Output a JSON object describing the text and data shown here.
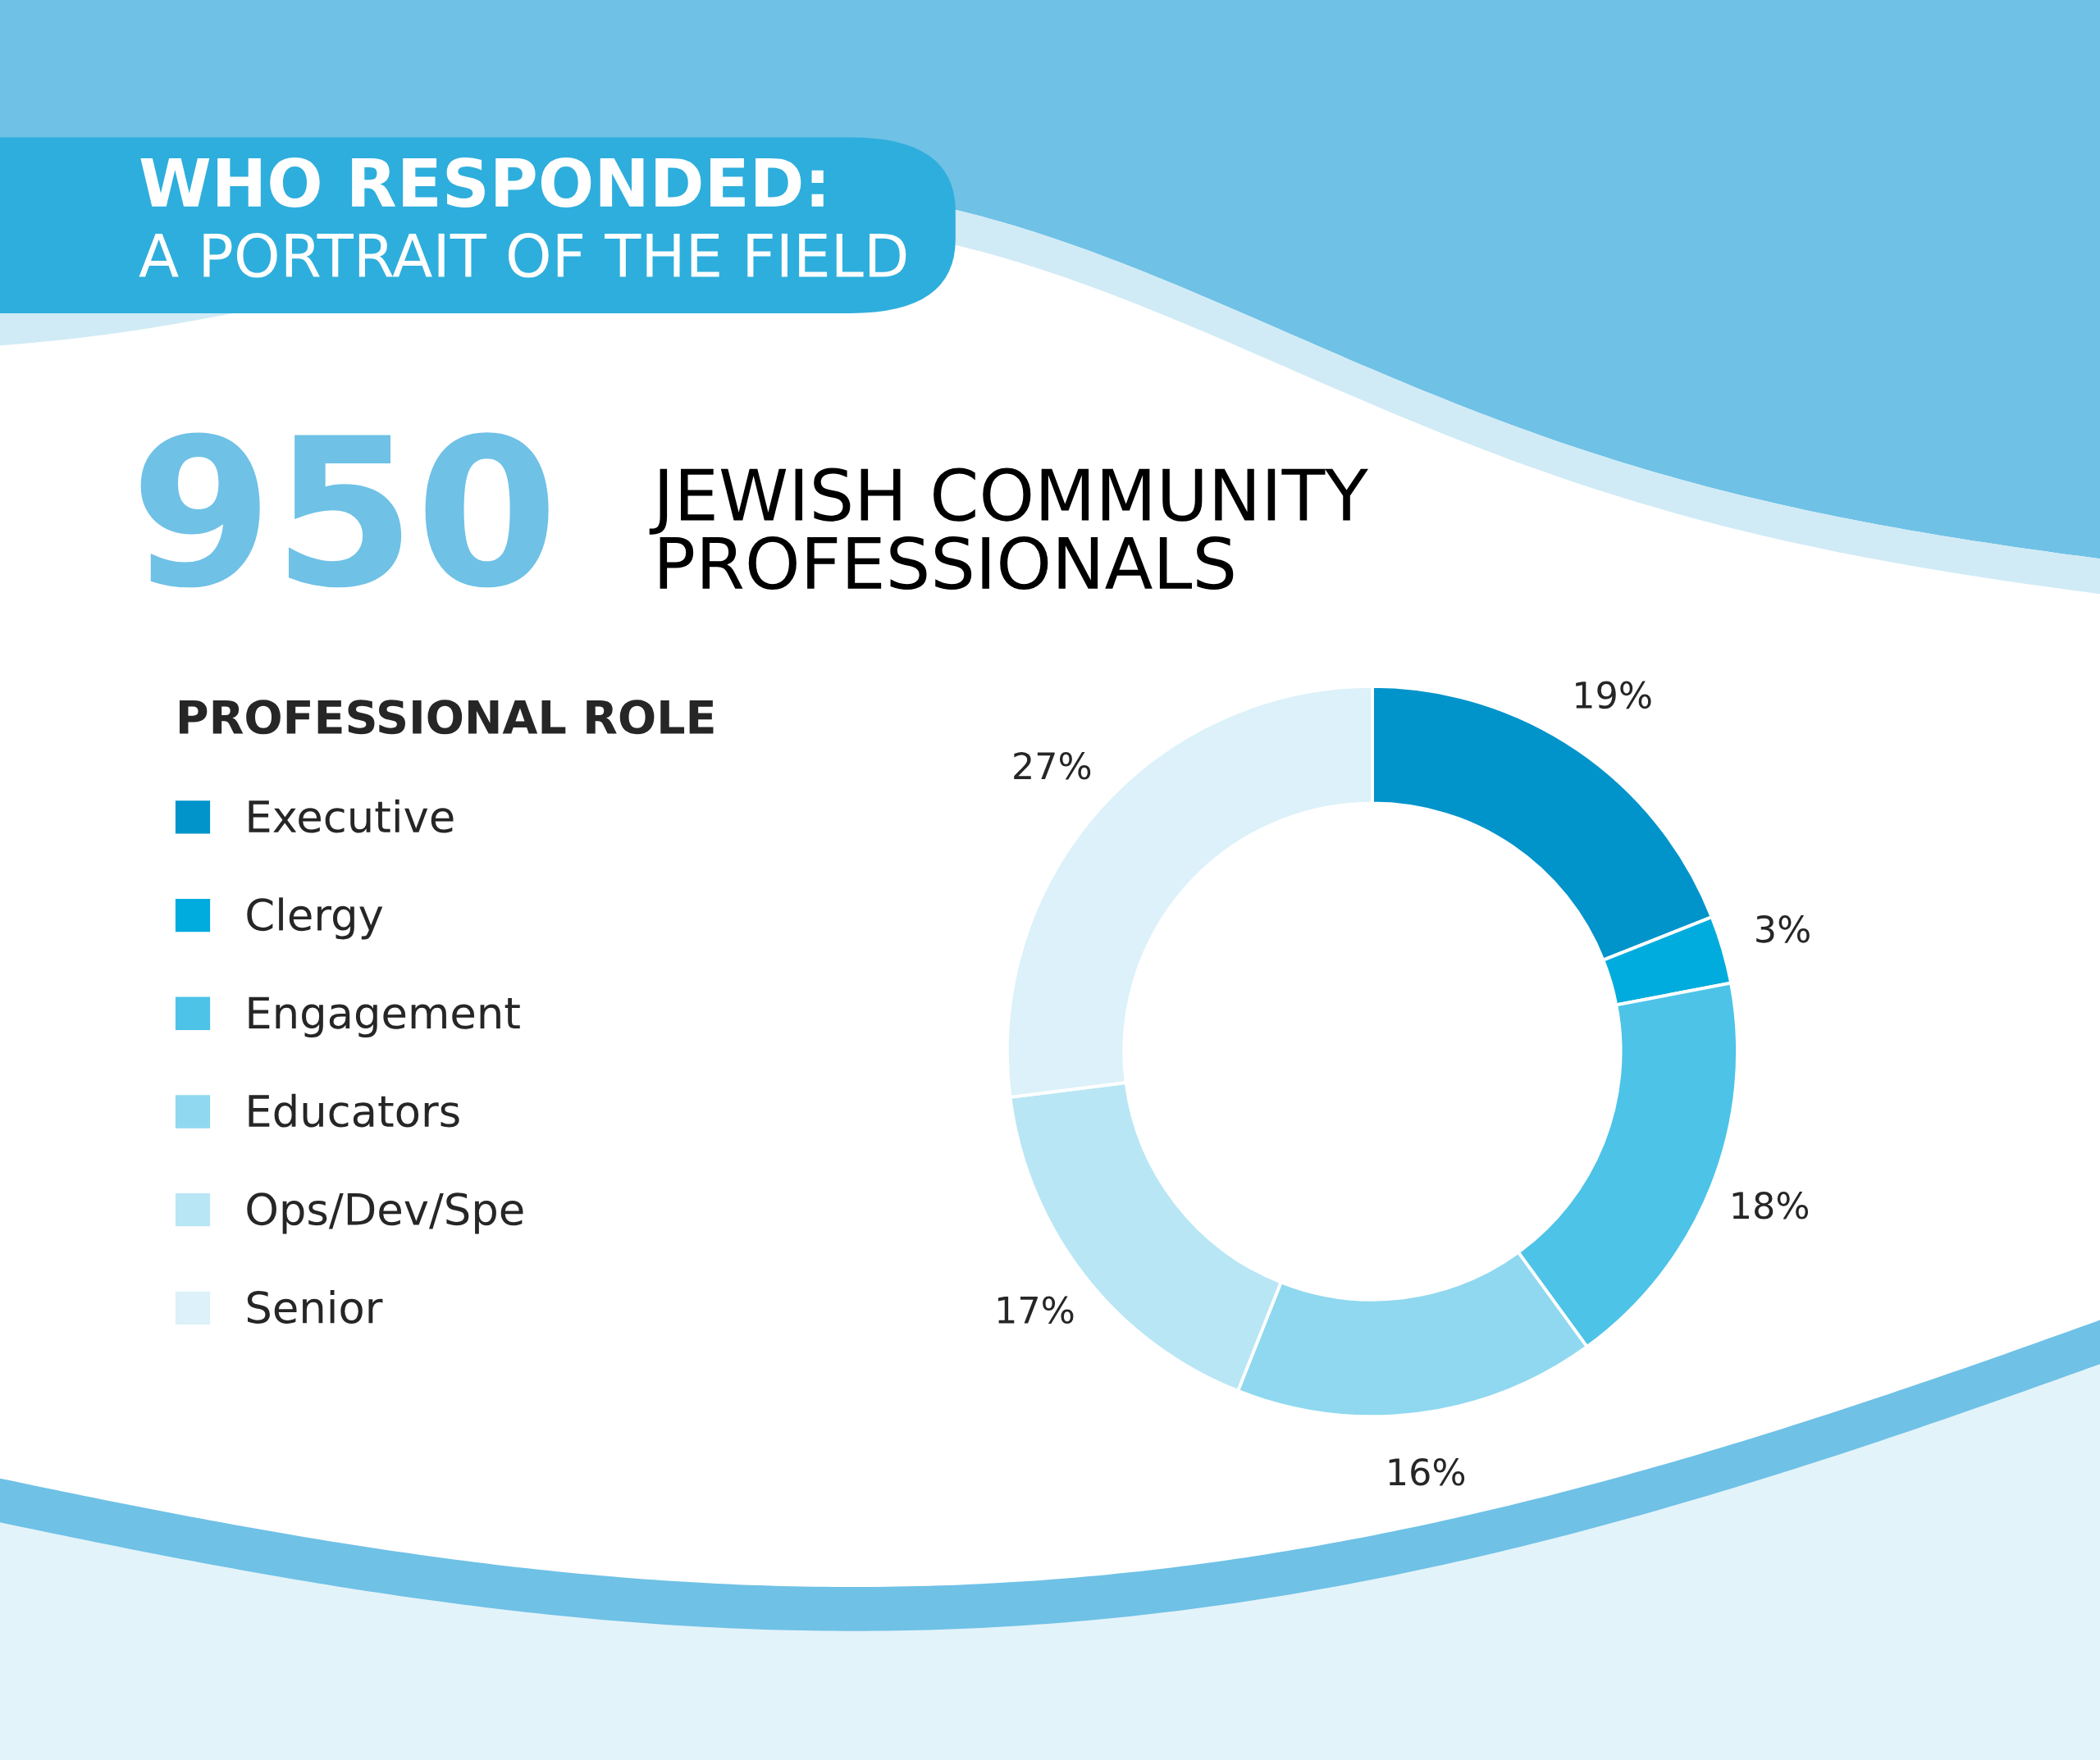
{
  "chart_data": {
    "type": "donut",
    "title": "WHO RESPONDED:",
    "subtitle": "A PORTRAIT OF THE FIELD",
    "annotations": [
      "950",
      "JEWISH COMMUNITY\nPROFESSIONALS"
    ],
    "legend_title": "PROFESSIONAL ROLE",
    "categories": [
      "Executive",
      "Clergy",
      "Engagement",
      "Educators",
      "Ops/Dev/Spe",
      "Senior"
    ],
    "values": [
      19,
      3,
      18,
      16,
      17,
      27
    ],
    "value_labels": [
      "19%",
      "3%",
      "18%",
      "16%",
      "17%",
      "27%"
    ],
    "colors": [
      "#0094cb",
      "#00acdd",
      "#4dc3e8",
      "#8fd8f0",
      "#b8e6f5",
      "#dcf1f9"
    ],
    "legend": "left"
  }
}
